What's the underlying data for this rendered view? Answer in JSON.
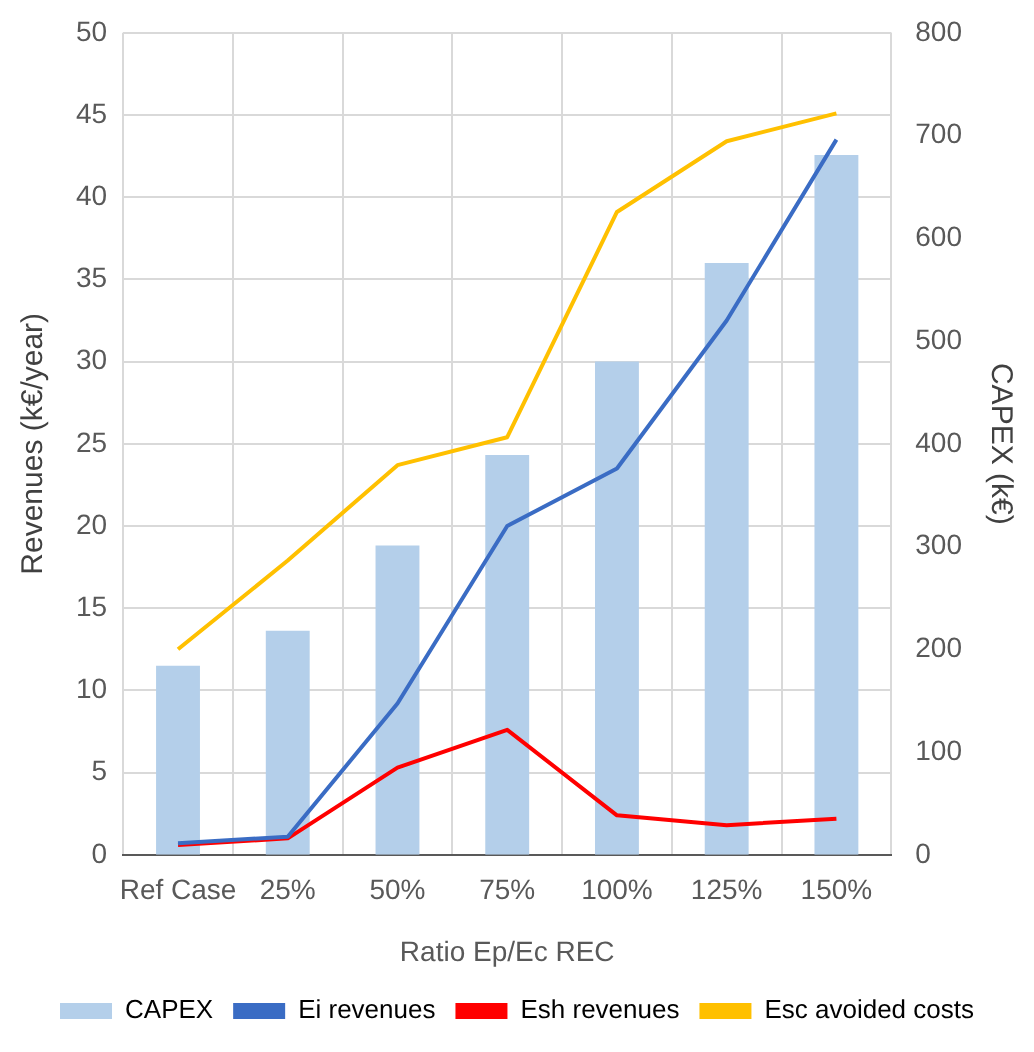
{
  "chart_data": {
    "type": "bar",
    "xlabel": "Ratio Ep/Ec REC",
    "ylabel": "Revenues (k€/year)",
    "y2label": "CAPEX (k€)",
    "categories": [
      "Ref Case",
      "25%",
      "50%",
      "75%",
      "100%",
      "125%",
      "150%"
    ],
    "series": [
      {
        "name": "CAPEX",
        "axis": "y2",
        "color": "#b4cfea",
        "values": [
          184,
          218,
          301,
          389,
          480,
          576,
          681
        ]
      },
      {
        "name": "Ei revenues",
        "type": "line",
        "color": "#3a6cc4",
        "values": [
          0.7,
          1.1,
          9.2,
          20,
          23.5,
          32.5,
          43.5
        ]
      },
      {
        "name": "Esh revenues",
        "type": "line",
        "color": "#ff0000",
        "values": [
          0.6,
          1.0,
          5.3,
          7.6,
          2.4,
          1.8,
          2.2
        ]
      },
      {
        "name": "Esc avoided costs",
        "type": "line",
        "color": "#ffc000",
        "values": [
          12.5,
          17.9,
          23.7,
          25.4,
          39.1,
          43.4,
          45.1
        ]
      }
    ],
    "ylim": [
      0,
      50
    ],
    "yticks": [
      0,
      5,
      10,
      15,
      20,
      25,
      30,
      35,
      40,
      45,
      50
    ],
    "y2lim": [
      0,
      800
    ],
    "y2ticks": [
      0,
      100,
      200,
      300,
      400,
      500,
      600,
      700,
      800
    ],
    "grid": true,
    "legend": "bottom",
    "marker": "none",
    "line_style": "solid"
  }
}
